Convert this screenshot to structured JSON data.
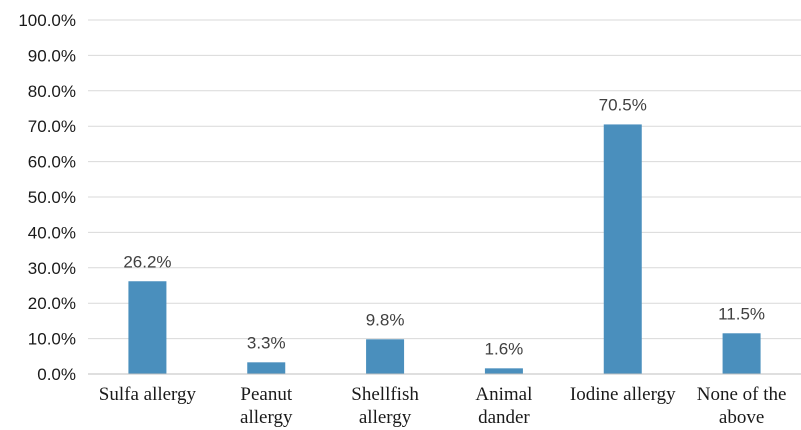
{
  "chart_data": {
    "type": "bar",
    "categories": [
      [
        "Sulfa allergy"
      ],
      [
        "Peanut",
        "allergy"
      ],
      [
        "Shellfish",
        "allergy"
      ],
      [
        "Animal",
        "dander"
      ],
      [
        "Iodine allergy"
      ],
      [
        "None of the",
        "above"
      ]
    ],
    "values": [
      26.2,
      3.3,
      9.8,
      1.6,
      70.5,
      11.5
    ],
    "data_labels": [
      "26.2%",
      "3.3%",
      "9.8%",
      "1.6%",
      "70.5%",
      "11.5%"
    ],
    "y_ticks": [
      "0.0%",
      "10.0%",
      "20.0%",
      "30.0%",
      "40.0%",
      "50.0%",
      "60.0%",
      "70.0%",
      "80.0%",
      "90.0%",
      "100.0%"
    ],
    "ylim": [
      0,
      100
    ],
    "grid": true,
    "legend": "none",
    "bar_color": "#4a8fbd"
  }
}
